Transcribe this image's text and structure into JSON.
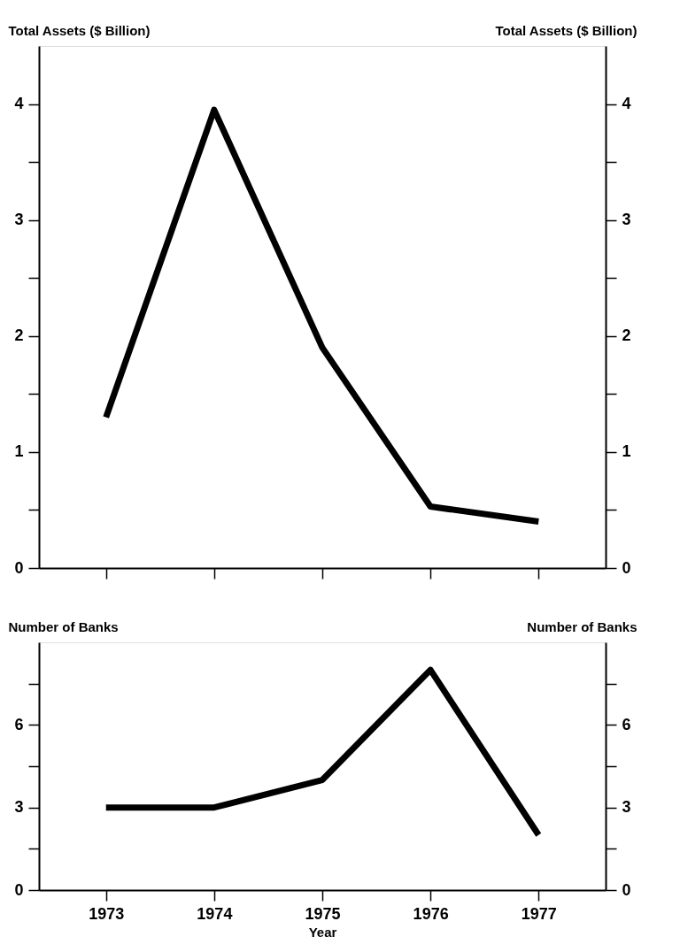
{
  "chart_data": [
    {
      "type": "line",
      "x": [
        1973,
        1974,
        1975,
        1976,
        1977
      ],
      "xlim": [
        1972.38,
        1977.62
      ],
      "xticks": [
        1973,
        1974,
        1975,
        1976,
        1977
      ],
      "ylabel": "Total Assets ($ Billion)",
      "y2label": "Total Assets ($ Billion)",
      "ylim": [
        0,
        4.5
      ],
      "yticks": [
        0,
        {
          "value": 0.5,
          "label": null
        },
        1,
        {
          "value": 1.5,
          "label": null
        },
        2,
        {
          "value": 2.5,
          "label": null
        },
        3,
        {
          "value": 3.5,
          "label": null
        },
        4
      ],
      "y2lim": [
        0,
        4.5
      ],
      "y2ticks": [
        0,
        {
          "value": 0.5,
          "label": null
        },
        1,
        {
          "value": 1.5,
          "label": null
        },
        2,
        {
          "value": 2.5,
          "label": null
        },
        3,
        {
          "value": 3.5,
          "label": null
        },
        4
      ],
      "tick_labels": "y",
      "line_style": "solid",
      "series": [
        {
          "color": "#000000",
          "values": [
            1.3,
            3.95,
            1.9,
            0.53,
            0.4
          ]
        }
      ]
    },
    {
      "type": "line",
      "x": [
        1973,
        1974,
        1975,
        1976,
        1977
      ],
      "xlim": [
        1972.38,
        1977.62
      ],
      "xticks": [
        1973,
        1974,
        1975,
        1976,
        1977
      ],
      "xlabel": "Year",
      "ylabel": "Number of Banks",
      "y2label": "Number of Banks",
      "ylim": [
        0,
        9
      ],
      "yticks": [
        0,
        {
          "value": 1.5,
          "label": null
        },
        3,
        {
          "value": 4.5,
          "label": null
        },
        6,
        {
          "value": 7.5,
          "label": null
        }
      ],
      "y2lim": [
        0,
        9
      ],
      "y2ticks": [
        0,
        {
          "value": 1.5,
          "label": null
        },
        3,
        {
          "value": 4.5,
          "label": null
        },
        6,
        {
          "value": 7.5,
          "label": null
        }
      ],
      "line_style": "solid",
      "series": [
        {
          "color": "#000000",
          "values": [
            3,
            3,
            4,
            8,
            2
          ]
        }
      ]
    }
  ]
}
